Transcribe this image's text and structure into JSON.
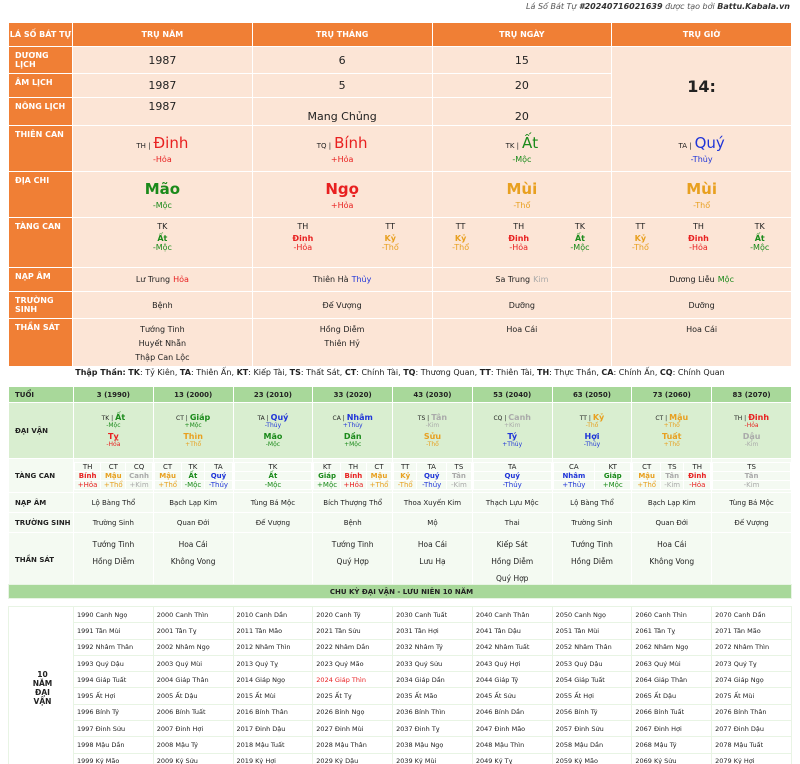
{
  "credit": {
    "prefix": "Lá Số Bát Tự",
    "id": "#20240716021639",
    "mid": "được tạo bởi",
    "site": "Battu.Kabala.vn"
  },
  "main": {
    "corner": "LÁ SỐ BÁT TỰ",
    "columns": [
      "TRỤ NĂM",
      "TRỤ THÁNG",
      "TRỤ NGÀY",
      "TRỤ GIỜ"
    ],
    "rows": {
      "duong_lich": {
        "label": "DƯƠNG LỊCH",
        "values": [
          "1987",
          "6",
          "15"
        ]
      },
      "am_lich": {
        "label": "ÂM LỊCH",
        "values": [
          "1987",
          "5",
          "20"
        ]
      },
      "nong_lich": {
        "label": "NÔNG LỊCH",
        "values": [
          "1987",
          "Mang Chủng",
          "20"
        ]
      },
      "hour": "14:",
      "thien_can": {
        "label": "THIÊN CAN",
        "cells": [
          {
            "tag": "TH |",
            "name": "Đinh",
            "el": "-Hỏa",
            "color": "red"
          },
          {
            "tag": "TQ |",
            "name": "Bính",
            "el": "+Hỏa",
            "color": "red"
          },
          {
            "tag": "TK |",
            "name": "Ất",
            "el": "-Mộc",
            "color": "grn"
          },
          {
            "tag": "TA |",
            "name": "Quý",
            "el": "-Thủy",
            "color": "blu"
          }
        ]
      },
      "dia_chi": {
        "label": "ĐỊA CHI",
        "cells": [
          {
            "name": "Mão",
            "el": "-Mộc",
            "color": "grn"
          },
          {
            "name": "Ngọ",
            "el": "+Hỏa",
            "color": "red"
          },
          {
            "name": "Mùi",
            "el": "-Thổ",
            "color": "org"
          },
          {
            "name": "Mùi",
            "el": "-Thổ",
            "color": "org"
          }
        ]
      },
      "tang_can": {
        "label": "TÀNG CAN",
        "cells": [
          [
            {
              "tag": "TK",
              "name": "Ất",
              "el": "-Mộc",
              "color": "grn"
            }
          ],
          [
            {
              "tag": "TH",
              "name": "Đinh",
              "el": "-Hỏa",
              "color": "red"
            },
            {
              "tag": "TT",
              "name": "Kỷ",
              "el": "-Thổ",
              "color": "org"
            }
          ],
          [
            {
              "tag": "TT",
              "name": "Kỷ",
              "el": "-Thổ",
              "color": "org"
            },
            {
              "tag": "TH",
              "name": "Đinh",
              "el": "-Hỏa",
              "color": "red"
            },
            {
              "tag": "TK",
              "name": "Ất",
              "el": "-Mộc",
              "color": "grn"
            }
          ],
          [
            {
              "tag": "TT",
              "name": "Kỷ",
              "el": "-Thổ",
              "color": "org"
            },
            {
              "tag": "TH",
              "name": "Đinh",
              "el": "-Hỏa",
              "color": "red"
            },
            {
              "tag": "TK",
              "name": "Ất",
              "el": "-Mộc",
              "color": "grn"
            }
          ]
        ]
      },
      "nap_am": {
        "label": "NẠP ÂM",
        "cells": [
          {
            "a": "Lư Trung",
            "b": "Hỏa",
            "color": "red"
          },
          {
            "a": "Thiên Hà",
            "b": "Thủy",
            "color": "blu"
          },
          {
            "a": "Sa Trung",
            "b": "Kim",
            "color": "gray"
          },
          {
            "a": "Dương Liễu",
            "b": "Mộc",
            "color": "grn"
          }
        ]
      },
      "truong_sinh": {
        "label": "TRƯỜNG SINH",
        "values": [
          "Bệnh",
          "Đế Vượng",
          "Dưỡng",
          "Dưỡng"
        ]
      },
      "than_sat": {
        "label": "THẦN SÁT",
        "values": [
          [
            "Tướng Tinh",
            "Huyết Nhẫn",
            "Thập Can Lộc"
          ],
          [
            "Hồng Diễm",
            "Thiên Hỷ"
          ],
          [
            "Hoa Cái"
          ],
          [
            "Hoa Cái"
          ]
        ]
      }
    }
  },
  "legend": {
    "label": "Thập Thần:",
    "items": [
      [
        "TK",
        "Tỷ Kiên"
      ],
      [
        "TA",
        "Thiên Ấn"
      ],
      [
        "KT",
        "Kiếp Tài"
      ],
      [
        "TS",
        "Thất Sát"
      ],
      [
        "CT",
        "Chính Tài"
      ],
      [
        "TQ",
        "Thương Quan"
      ],
      [
        "TT",
        "Thiên Tài"
      ],
      [
        "TH",
        "Thực Thần"
      ],
      [
        "CA",
        "Chính Ấn"
      ],
      [
        "CQ",
        "Chính Quan"
      ]
    ]
  },
  "daivan": {
    "label_tuoi": "TUỔI",
    "label_dv": "ĐẠI VẬN",
    "label_tc": "TÀNG CAN",
    "label_na": "NẠP ÂM",
    "label_ts": "TRƯỜNG SINH",
    "label_tsat": "THẦN SÁT",
    "cols": [
      {
        "tuoi": "3 (1990)",
        "ctag": "TK |",
        "can": "Ất",
        "cel": "-Mộc",
        "ccol": "grn",
        "chi": "Tỵ",
        "chel": "-Hỏa",
        "chcol": "red",
        "tc": [
          [
            "TH",
            "Bính",
            "+Hỏa",
            "red"
          ],
          [
            "CT",
            "Mậu",
            "+Thổ",
            "org"
          ],
          [
            "CQ",
            "Canh",
            "+Kim",
            "gray"
          ]
        ],
        "na": "Lộ Bàng Thổ",
        "ts": "Trường Sinh",
        "tsat": [
          "Tướng Tinh",
          "Hồng Diễm"
        ]
      },
      {
        "tuoi": "13 (2000)",
        "ctag": "CT |",
        "can": "Giáp",
        "cel": "+Mộc",
        "ccol": "grn",
        "chi": "Thìn",
        "chel": "+Thổ",
        "chcol": "org",
        "tc": [
          [
            "CT",
            "Mậu",
            "+Thổ",
            "org"
          ],
          [
            "TK",
            "Ất",
            "-Mộc",
            "grn"
          ],
          [
            "TA",
            "Quý",
            "-Thủy",
            "blu"
          ]
        ],
        "na": "Bạch Lạp Kim",
        "ts": "Quan Đới",
        "tsat": [
          "Hoa Cái",
          "Không Vong"
        ]
      },
      {
        "tuoi": "23 (2010)",
        "ctag": "TA |",
        "can": "Quý",
        "cel": "-Thủy",
        "ccol": "blu",
        "chi": "Mão",
        "chel": "-Mộc",
        "chcol": "grn",
        "tc": [
          [
            "TK",
            "Ất",
            "-Mộc",
            "grn"
          ]
        ],
        "na": "Tùng Bá Mộc",
        "ts": "Đế Vượng",
        "tsat": []
      },
      {
        "tuoi": "33 (2020)",
        "ctag": "CA |",
        "can": "Nhâm",
        "cel": "+Thủy",
        "ccol": "blu",
        "chi": "Dần",
        "chel": "+Mộc",
        "chcol": "grn",
        "tc": [
          [
            "KT",
            "Giáp",
            "+Mộc",
            "grn"
          ],
          [
            "TH",
            "Bính",
            "+Hỏa",
            "red"
          ],
          [
            "CT",
            "Mậu",
            "+Thổ",
            "org"
          ]
        ],
        "na": "Bích Thượng Thổ",
        "ts": "Bệnh",
        "tsat": [
          "Tướng Tinh",
          "Quý Hợp"
        ]
      },
      {
        "tuoi": "43 (2030)",
        "ctag": "TS |",
        "can": "Tân",
        "cel": "-Kim",
        "ccol": "gray",
        "chi": "Sửu",
        "chel": "-Thổ",
        "chcol": "org",
        "tc": [
          [
            "TT",
            "Kỷ",
            "-Thổ",
            "org"
          ],
          [
            "TA",
            "Quý",
            "-Thủy",
            "blu"
          ],
          [
            "TS",
            "Tân",
            "-Kim",
            "gray"
          ]
        ],
        "na": "Thoa Xuyến Kim",
        "ts": "Mộ",
        "tsat": [
          "Hoa Cái",
          "Lưu Hạ"
        ]
      },
      {
        "tuoi": "53 (2040)",
        "ctag": "CQ |",
        "can": "Canh",
        "cel": "+Kim",
        "ccol": "gray",
        "chi": "Tý",
        "chel": "+Thủy",
        "chcol": "blu",
        "tc": [
          [
            "TA",
            "Quý",
            "-Thủy",
            "blu"
          ]
        ],
        "na": "Thạch Lựu Mộc",
        "ts": "Thai",
        "tsat": [
          "Kiếp Sát",
          "Hồng Diễm",
          "Quý Hợp"
        ]
      },
      {
        "tuoi": "63 (2050)",
        "ctag": "TT |",
        "can": "Kỷ",
        "cel": "-Thổ",
        "ccol": "org",
        "chi": "Hợi",
        "chel": "-Thủy",
        "chcol": "blu",
        "tc": [
          [
            "CA",
            "Nhâm",
            "+Thủy",
            "blu"
          ],
          [
            "KT",
            "Giáp",
            "+Mộc",
            "grn"
          ]
        ],
        "na": "Lộ Bàng Thổ",
        "ts": "Trường Sinh",
        "tsat": [
          "Tướng Tinh",
          "Hồng Diễm"
        ]
      },
      {
        "tuoi": "73 (2060)",
        "ctag": "CT |",
        "can": "Mậu",
        "cel": "+Thổ",
        "ccol": "org",
        "chi": "Tuất",
        "chel": "+Thổ",
        "chcol": "org",
        "tc": [
          [
            "CT",
            "Mậu",
            "+Thổ",
            "org"
          ],
          [
            "TS",
            "Tân",
            "-Kim",
            "gray"
          ],
          [
            "TH",
            "Đinh",
            "-Hỏa",
            "red"
          ]
        ],
        "na": "Bạch Lạp Kim",
        "ts": "Quan Đới",
        "tsat": [
          "Hoa Cái",
          "Không Vong"
        ]
      },
      {
        "tuoi": "83 (2070)",
        "ctag": "TH |",
        "can": "Đinh",
        "cel": "-Hỏa",
        "ccol": "red",
        "chi": "Dậu",
        "chel": "-Kim",
        "chcol": "gray",
        "tc": [
          [
            "TS",
            "Tân",
            "-Kim",
            "gray"
          ]
        ],
        "na": "Tùng Bá Mộc",
        "ts": "Đế Vượng",
        "tsat": []
      }
    ]
  },
  "chuky": {
    "title": "CHU KỲ ĐẠI VẬN - LƯU NIÊN 10 NĂM",
    "side": [
      "10",
      "NĂM",
      "ĐẠI",
      "VẬN"
    ],
    "highlight": "2024 Giáp Thìn",
    "grid": [
      [
        "1990 Canh Ngọ",
        "2000 Canh Thìn",
        "2010 Canh Dần",
        "2020 Canh Tý",
        "2030 Canh Tuất",
        "2040 Canh Thân",
        "2050 Canh Ngọ",
        "2060 Canh Thìn",
        "2070 Canh Dần"
      ],
      [
        "1991 Tân Mùi",
        "2001 Tân Tỵ",
        "2011 Tân Mão",
        "2021 Tân Sửu",
        "2031 Tân Hợi",
        "2041 Tân Dậu",
        "2051 Tân Mùi",
        "2061 Tân Tỵ",
        "2071 Tân Mão"
      ],
      [
        "1992 Nhâm Thân",
        "2002 Nhâm Ngọ",
        "2012 Nhâm Thìn",
        "2022 Nhâm Dần",
        "2032 Nhâm Tý",
        "2042 Nhâm Tuất",
        "2052 Nhâm Thân",
        "2062 Nhâm Ngọ",
        "2072 Nhâm Thìn"
      ],
      [
        "1993 Quý Dậu",
        "2003 Quý Mùi",
        "2013 Quý Tỵ",
        "2023 Quý Mão",
        "2033 Quý Sửu",
        "2043 Quý Hợi",
        "2053 Quý Dậu",
        "2063 Quý Mùi",
        "2073 Quý Tỵ"
      ],
      [
        "1994 Giáp Tuất",
        "2004 Giáp Thân",
        "2014 Giáp Ngọ",
        "2024 Giáp Thìn",
        "2034 Giáp Dần",
        "2044 Giáp Tý",
        "2054 Giáp Tuất",
        "2064 Giáp Thân",
        "2074 Giáp Ngọ"
      ],
      [
        "1995 Ất Hợi",
        "2005 Ất Dậu",
        "2015 Ất Mùi",
        "2025 Ất Tỵ",
        "2035 Ất Mão",
        "2045 Ất Sửu",
        "2055 Ất Hợi",
        "2065 Ất Dậu",
        "2075 Ất Mùi"
      ],
      [
        "1996 Bính Tý",
        "2006 Bính Tuất",
        "2016 Bính Thân",
        "2026 Bính Ngọ",
        "2036 Bính Thìn",
        "2046 Bính Dần",
        "2056 Bính Tý",
        "2066 Bính Tuất",
        "2076 Bính Thân"
      ],
      [
        "1997 Đinh Sửu",
        "2007 Đinh Hợi",
        "2017 Đinh Dậu",
        "2027 Đinh Mùi",
        "2037 Đinh Tỵ",
        "2047 Đinh Mão",
        "2057 Đinh Sửu",
        "2067 Đinh Hợi",
        "2077 Đinh Dậu"
      ],
      [
        "1998 Mậu Dần",
        "2008 Mậu Tý",
        "2018 Mậu Tuất",
        "2028 Mậu Thân",
        "2038 Mậu Ngọ",
        "2048 Mậu Thìn",
        "2058 Mậu Dần",
        "2068 Mậu Tý",
        "2078 Mậu Tuất"
      ],
      [
        "1999 Kỷ Mão",
        "2009 Kỷ Sửu",
        "2019 Kỷ Hợi",
        "2029 Kỷ Dậu",
        "2039 Kỷ Mùi",
        "2049 Kỷ Tỵ",
        "2059 Kỷ Mão",
        "2069 Kỷ Sửu",
        "2079 Kỷ Hợi"
      ]
    ]
  },
  "colors": {
    "orange": "#f07f35",
    "peach": "#fce5d6",
    "green_header": "#a8d89a",
    "green_light": "#d9eed0",
    "red": "#e82020",
    "green": "#1a8a1a",
    "blue": "#2035d8",
    "gold": "#e8a020"
  }
}
